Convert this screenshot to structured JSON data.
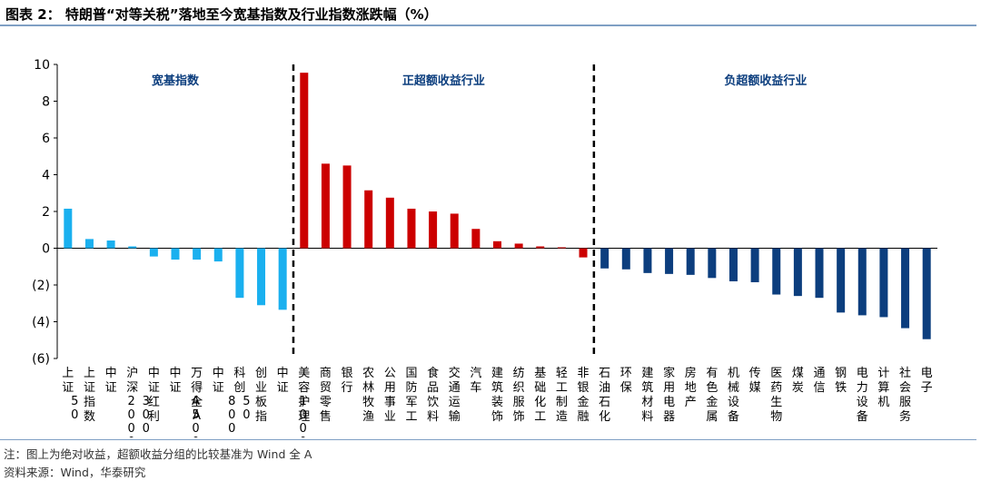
{
  "header": {
    "title": "图表 2： 特朗普“对等关税”落地至今宽基指数及行业指数涨跌幅（%）"
  },
  "footer": {
    "note": "注：图上为绝对收益，超额收益分组的比较基准为 Wind 全 A",
    "source": "资料来源：Wind，华泰研究"
  },
  "colors": {
    "broad": "#1ab0ef",
    "positive": "#cc0000",
    "negative": "#0c3e7e",
    "group_label": "#0c3e7e",
    "rule": "#7f9fc4"
  },
  "chart_data": {
    "type": "bar",
    "ylim": [
      -6,
      10
    ],
    "yticks": [
      10,
      8,
      6,
      4,
      2,
      0,
      -2,
      -4,
      -6
    ],
    "ytick_labels": [
      "10",
      "8",
      "6",
      "4",
      "2",
      "0",
      "(2)",
      "(4)",
      "(6)"
    ],
    "grid": false,
    "groups": [
      {
        "label": "宽基指数",
        "color_key": "broad"
      },
      {
        "label": "正超额收益行业",
        "color_key": "positive"
      },
      {
        "label": "负超额收益行业",
        "color_key": "negative"
      }
    ],
    "categories": [
      {
        "label": "上证50",
        "value": 2.15,
        "group": 0
      },
      {
        "label": "上证指数",
        "value": 0.5,
        "group": 0
      },
      {
        "label": "中证2000",
        "value": 0.42,
        "group": 0
      },
      {
        "label": "沪深300",
        "value": 0.1,
        "group": 0
      },
      {
        "label": "中证红利",
        "value": -0.45,
        "group": 0
      },
      {
        "label": "中证A500",
        "value": -0.62,
        "group": 0
      },
      {
        "label": "万得全A",
        "value": -0.62,
        "group": 0
      },
      {
        "label": "中证800",
        "value": -0.72,
        "group": 0
      },
      {
        "label": "科创50",
        "value": -2.7,
        "group": 0
      },
      {
        "label": "创业板指",
        "value": -3.1,
        "group": 0
      },
      {
        "label": "中证1000",
        "value": -3.35,
        "group": 0
      },
      {
        "label": "美容护理",
        "value": 9.55,
        "group": 1
      },
      {
        "label": "商贸零售",
        "value": 4.6,
        "group": 1
      },
      {
        "label": "银行",
        "value": 4.5,
        "group": 1
      },
      {
        "label": "农林牧渔",
        "value": 3.15,
        "group": 1
      },
      {
        "label": "公用事业",
        "value": 2.75,
        "group": 1
      },
      {
        "label": "国防军工",
        "value": 2.15,
        "group": 1
      },
      {
        "label": "食品饮料",
        "value": 2.0,
        "group": 1
      },
      {
        "label": "交通运输",
        "value": 1.88,
        "group": 1
      },
      {
        "label": "汽车",
        "value": 1.05,
        "group": 1
      },
      {
        "label": "建筑装饰",
        "value": 0.38,
        "group": 1
      },
      {
        "label": "纺织服饰",
        "value": 0.25,
        "group": 1
      },
      {
        "label": "基础化工",
        "value": 0.1,
        "group": 1
      },
      {
        "label": "轻工制造",
        "value": 0.05,
        "group": 1
      },
      {
        "label": "非银金融",
        "value": -0.5,
        "group": 1
      },
      {
        "label": "石油石化",
        "value": -1.1,
        "group": 2
      },
      {
        "label": "环保",
        "value": -1.15,
        "group": 2
      },
      {
        "label": "建筑材料",
        "value": -1.35,
        "group": 2
      },
      {
        "label": "家用电器",
        "value": -1.4,
        "group": 2
      },
      {
        "label": "房地产",
        "value": -1.45,
        "group": 2
      },
      {
        "label": "有色金属",
        "value": -1.62,
        "group": 2
      },
      {
        "label": "机械设备",
        "value": -1.8,
        "group": 2
      },
      {
        "label": "传媒",
        "value": -1.85,
        "group": 2
      },
      {
        "label": "医药生物",
        "value": -2.52,
        "group": 2
      },
      {
        "label": "煤炭",
        "value": -2.6,
        "group": 2
      },
      {
        "label": "通信",
        "value": -2.7,
        "group": 2
      },
      {
        "label": "钢铁",
        "value": -3.5,
        "group": 2
      },
      {
        "label": "电力设备",
        "value": -3.65,
        "group": 2
      },
      {
        "label": "计算机",
        "value": -3.75,
        "group": 2
      },
      {
        "label": "社会服务",
        "value": -4.35,
        "group": 2
      },
      {
        "label": "电子",
        "value": -4.95,
        "group": 2
      }
    ]
  }
}
